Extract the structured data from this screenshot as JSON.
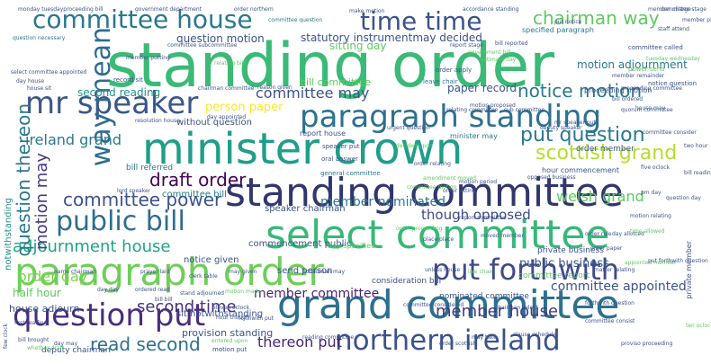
{
  "colors": {
    "background": "#ffffff",
    "palette": [
      "#440154",
      "#3b528b",
      "#21918c",
      "#2a788e",
      "#5ec962",
      "#fde725",
      "#27ad81",
      "#443983"
    ]
  },
  "words": [
    {
      "text": "standing order",
      "color": "#3aba76"
    },
    {
      "text": "minister crown",
      "color": "#1f9e89"
    },
    {
      "text": "standing committee",
      "color": "#31366e"
    },
    {
      "text": "grand committee",
      "color": "#2d708e"
    },
    {
      "text": "select committee",
      "color": "#37b878"
    },
    {
      "text": "paragraph order",
      "color": "#6ece58"
    },
    {
      "text": "paragraph standing",
      "color": "#2c718e"
    },
    {
      "text": "question put",
      "color": "#472d7b"
    },
    {
      "text": "northern ireland",
      "color": "#3b528b"
    },
    {
      "text": "put forthwith",
      "color": "#3e4a89"
    },
    {
      "text": "mr speaker",
      "color": "#39568c"
    },
    {
      "text": "public bill",
      "color": "#2e6d8e"
    },
    {
      "text": "committee house",
      "color": "#2a788e"
    },
    {
      "text": "time time",
      "color": "#3b528b"
    },
    {
      "text": "way mean",
      "color": "#2f6c8e"
    },
    {
      "text": "chairman way",
      "color": "#5ec962"
    },
    {
      "text": "scottish grand",
      "color": "#b5de2b"
    },
    {
      "text": "put question",
      "color": "#2a788e"
    },
    {
      "text": "adjournment house",
      "color": "#20a486"
    },
    {
      "text": "member house",
      "color": "#443983"
    },
    {
      "text": "read second",
      "color": "#2c718e"
    },
    {
      "text": "thereon put",
      "color": "#482475"
    },
    {
      "text": "notice motion",
      "color": "#2a788e"
    },
    {
      "text": "question thereon",
      "color": "#2a788e"
    },
    {
      "text": "committee power",
      "color": "#3b528b"
    },
    {
      "text": "draft order",
      "color": "#440154"
    },
    {
      "text": "motion may",
      "color": "#443983"
    },
    {
      "text": "second time",
      "color": "#46327e"
    },
    {
      "text": "order day",
      "color": "#7fd34e"
    },
    {
      "text": "committee may",
      "color": "#3b528b"
    },
    {
      "text": "member committee",
      "color": "#481f70"
    },
    {
      "text": "public business",
      "color": "#3b528b"
    },
    {
      "text": "welsh grand",
      "color": "#5ec962"
    },
    {
      "text": "committee appointed",
      "color": "#3b528b"
    },
    {
      "text": "member nominated",
      "color": "#2a788e"
    },
    {
      "text": "though opposed",
      "color": "#3e4a89"
    },
    {
      "text": "ireland grand",
      "color": "#2a788e"
    },
    {
      "text": "second reading",
      "color": "#21918c"
    },
    {
      "text": "question motion",
      "color": "#3b528b"
    },
    {
      "text": "sitting day",
      "color": "#5ec962"
    },
    {
      "text": "statutory instrumentmay decided",
      "color": "#3b528b"
    },
    {
      "text": "motion adjournment",
      "color": "#2a788e"
    },
    {
      "text": "provision standing",
      "color": "#3b528b"
    },
    {
      "text": "notwithstanding",
      "color": "#21918c"
    },
    {
      "text": "house adjourn",
      "color": "#3b528b"
    },
    {
      "text": "bill committee",
      "color": "#5ec962"
    },
    {
      "text": "without question",
      "color": "#3b528b"
    },
    {
      "text": "paper record",
      "color": "#3b528b"
    },
    {
      "text": "bill referred",
      "color": "#2a788e"
    },
    {
      "text": "committee bill",
      "color": "#2a788e"
    },
    {
      "text": "commencement public",
      "color": "#3b528b"
    },
    {
      "text": "notice given",
      "color": "#3b528b"
    },
    {
      "text": "speaker chairman",
      "color": "#3b528b"
    },
    {
      "text": "send person",
      "color": "#3b528b"
    },
    {
      "text": "consideration bill",
      "color": "#3b528b"
    },
    {
      "text": "sit notwithstanding",
      "color": "#3b528b"
    },
    {
      "text": "deputy chairman",
      "color": "#3b528b"
    },
    {
      "text": "private business",
      "color": "#3b528b"
    },
    {
      "text": "report house",
      "color": "#3b528b"
    },
    {
      "text": "half hour",
      "color": "#5ec962"
    },
    {
      "text": "nominated committee",
      "color": "#3b528b"
    },
    {
      "text": "committee report",
      "color": "#5ec962"
    },
    {
      "text": "order member",
      "color": "#3b528b"
    },
    {
      "text": "hour commencement",
      "color": "#3b528b"
    },
    {
      "text": "proceeding motion",
      "color": "#3b528b"
    },
    {
      "text": "private member",
      "color": "#3b528b"
    },
    {
      "text": "government department",
      "color": "#3b528b"
    },
    {
      "text": "order northern",
      "color": "#3b528b"
    },
    {
      "text": "committee question",
      "color": "#2a788e"
    },
    {
      "text": "make motion",
      "color": "#3b528b"
    },
    {
      "text": "accordance standing",
      "color": "#3b528b"
    },
    {
      "text": "specified paragraph",
      "color": "#2a788e"
    },
    {
      "text": "staff attend",
      "color": "#3b528b"
    },
    {
      "text": "monday tuesdayproceeding bill",
      "color": "#3b528b"
    },
    {
      "text": "question necessary",
      "color": "#2a788e"
    },
    {
      "text": "record sit",
      "color": "#3b528b"
    },
    {
      "text": "leave chair",
      "color": "#2a788e"
    },
    {
      "text": "order apply",
      "color": "#3b528b"
    },
    {
      "text": "minister may",
      "color": "#2a788e"
    },
    {
      "text": "speaker put",
      "color": "#3b528b"
    },
    {
      "text": "oral answer",
      "color": "#3b528b"
    },
    {
      "text": "general committee",
      "color": "#2a788e"
    },
    {
      "text": "person paper",
      "color": "#fde725"
    },
    {
      "text": "order scottish",
      "color": "#3b528b"
    },
    {
      "text": "clause schedule",
      "color": "#3b528b"
    },
    {
      "text": "committee consist",
      "color": "#3b528b"
    },
    {
      "text": "forthwith question",
      "color": "#3b528b"
    },
    {
      "text": "matter relating",
      "color": "#3b528b"
    },
    {
      "text": "committee considered",
      "color": "#3b528b"
    },
    {
      "text": "reading committee",
      "color": "#3b528b"
    },
    {
      "text": "motion put",
      "color": "#3b528b"
    },
    {
      "text": "bill brought",
      "color": "#3b528b"
    },
    {
      "text": "day may",
      "color": "#3b528b"
    },
    {
      "text": "may take",
      "color": "#3b528b"
    },
    {
      "text": "day specified",
      "color": "#5ec962"
    },
    {
      "text": "place place",
      "color": "#3b528b"
    },
    {
      "text": "report committee",
      "color": "#3b528b"
    },
    {
      "text": "house sit",
      "color": "#3b528b"
    },
    {
      "text": "day house",
      "color": "#3b528b"
    },
    {
      "text": "order sitting",
      "color": "#3b528b"
    },
    {
      "text": "hour though",
      "color": "#3b528b"
    },
    {
      "text": "forthwith put",
      "color": "#3b528b"
    },
    {
      "text": "proviso proceeding",
      "color": "#3b528b"
    },
    {
      "text": "tuesday wednesday",
      "color": "#5ec962"
    },
    {
      "text": "power send",
      "color": "#5ec962"
    },
    {
      "text": "notice question",
      "color": "#3b528b"
    },
    {
      "text": "committee called",
      "color": "#3b528b"
    },
    {
      "text": "ordered read",
      "color": "#3b528b"
    },
    {
      "text": "bill bill",
      "color": "#3b528b"
    },
    {
      "text": "day day",
      "color": "#3b528b"
    },
    {
      "text": "whether draft",
      "color": "#5ec962"
    },
    {
      "text": "clerk table",
      "color": "#3b528b"
    },
    {
      "text": "entered upon",
      "color": "#5ec962"
    },
    {
      "text": "chairman committee",
      "color": "#3b528b"
    },
    {
      "text": "reason given",
      "color": "#3b528b"
    },
    {
      "text": "house may",
      "color": "#2a788e"
    },
    {
      "text": "motion made",
      "color": "#5ec962"
    },
    {
      "text": "eleven oclock",
      "color": "#3b528b"
    },
    {
      "text": "resolution house",
      "color": "#3b528b"
    },
    {
      "text": "lord speaker",
      "color": "#3b528b"
    },
    {
      "text": "may given",
      "color": "#3b528b"
    },
    {
      "text": "order relating",
      "color": "#3b528b"
    },
    {
      "text": "decided upon",
      "color": "#5ec962"
    },
    {
      "text": "deputy speaker",
      "color": "#3b528b"
    },
    {
      "text": "government bill",
      "color": "#5ec962"
    },
    {
      "text": "member charge",
      "color": "#3b528b"
    },
    {
      "text": "stand adjourned",
      "color": "#3b528b"
    },
    {
      "text": "sub committee",
      "color": "#3b528b"
    },
    {
      "text": "motion relating",
      "color": "#3b528b"
    },
    {
      "text": "chairman select",
      "color": "#3b528b"
    },
    {
      "text": "report stage",
      "color": "#3b528b"
    },
    {
      "text": "estimate day",
      "color": "#5ec962"
    },
    {
      "text": "relating committee",
      "color": "#3b528b"
    },
    {
      "text": "amendment moved",
      "color": "#5ec962"
    },
    {
      "text": "opposed business",
      "color": "#3b528b"
    },
    {
      "text": "quorum committee",
      "color": "#3b528b"
    },
    {
      "text": "urgent question",
      "color": "#3b528b"
    },
    {
      "text": "committee stage",
      "color": "#3b528b"
    },
    {
      "text": "motion period",
      "color": "#3b528b"
    },
    {
      "text": "day allotted",
      "color": "#3b528b"
    },
    {
      "text": "time allowed",
      "color": "#5ec962"
    },
    {
      "text": "live chair",
      "color": "#5ec962"
    },
    {
      "text": "member present",
      "color": "#3b528b"
    },
    {
      "text": "first reading",
      "color": "#3b528b"
    },
    {
      "text": "pm day",
      "color": "#3b528b"
    },
    {
      "text": "two hour",
      "color": "#3b528b"
    },
    {
      "text": "five oclock",
      "color": "#3b528b"
    },
    {
      "text": "ten oclock",
      "color": "#5ec962"
    },
    {
      "text": "few clock",
      "color": "#3b528b"
    },
    {
      "text": "name chairman",
      "color": "#3b528b"
    },
    {
      "text": "bill ordered",
      "color": "#3b528b"
    },
    {
      "text": "moved member",
      "color": "#3b528b"
    },
    {
      "text": "select committee appointed",
      "color": "#3b528b"
    },
    {
      "text": "member remainder",
      "color": "#3b528b"
    },
    {
      "text": "committee subcommittee",
      "color": "#3b528b"
    },
    {
      "text": "relating bill",
      "color": "#5ec962"
    },
    {
      "text": "order rule",
      "color": "#3b528b"
    },
    {
      "text": "prayer laid",
      "color": "#3b528b"
    },
    {
      "text": "put notice",
      "color": "#3b528b"
    },
    {
      "text": "order proceeding",
      "color": "#5ec962"
    },
    {
      "text": "unless house",
      "color": "#3b528b"
    },
    {
      "text": "motion proposed",
      "color": "#3b528b"
    },
    {
      "text": "bill reported",
      "color": "#3b528b"
    },
    {
      "text": "member putting",
      "color": "#3b528b"
    },
    {
      "text": "chairman may",
      "color": "#3b528b"
    },
    {
      "text": "order paper",
      "color": "#3b528b"
    },
    {
      "text": "appointed member",
      "color": "#5ec962"
    },
    {
      "text": "day appointed",
      "color": "#3b528b"
    },
    {
      "text": "proceeding committee",
      "color": "#3b528b"
    },
    {
      "text": "committee consider",
      "color": "#3b528b"
    },
    {
      "text": "mr speaker put",
      "color": "#3b528b"
    },
    {
      "text": "bill reading",
      "color": "#3b528b"
    },
    {
      "text": "question day",
      "color": "#3b528b"
    },
    {
      "text": "committee motion",
      "color": "#5ec962"
    },
    {
      "text": "put forthwith question",
      "color": "#3b528b"
    },
    {
      "text": "consideration estimate",
      "color": "#3b528b"
    },
    {
      "text": "wednesday thursday",
      "color": "#3b528b"
    },
    {
      "text": "may order",
      "color": "#3b528b"
    },
    {
      "text": "considered committee",
      "color": "#5ec962"
    },
    {
      "text": "sitting motion",
      "color": "#3b528b"
    },
    {
      "text": "committee amendment",
      "color": "#3b528b"
    },
    {
      "text": "committee power send",
      "color": "#5ec962"
    }
  ]
}
